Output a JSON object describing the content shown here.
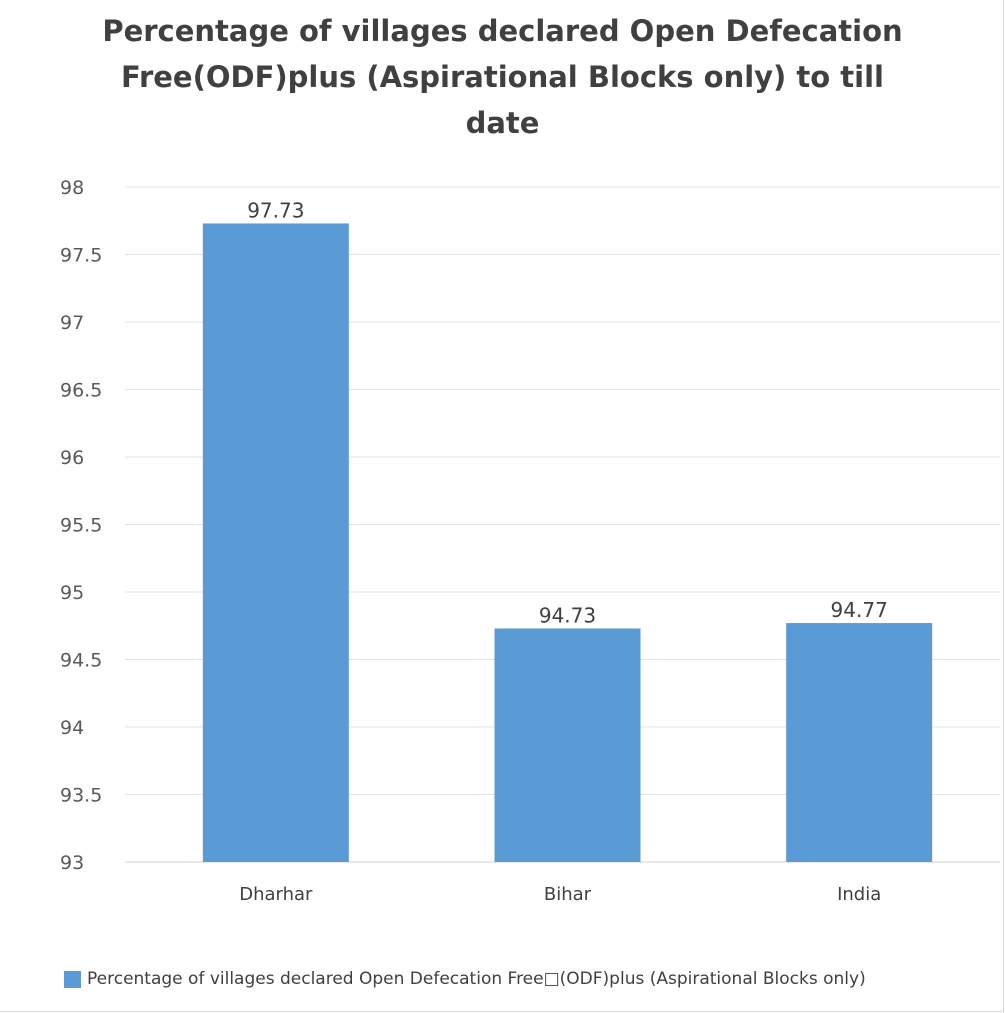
{
  "chart_data": {
    "type": "bar",
    "title_lines": [
      "Percentage of villages declared Open Defecation",
      "Free(ODF)plus (Aspirational Blocks only) to till",
      "date"
    ],
    "categories": [
      "Dharhar",
      "Bihar",
      "India"
    ],
    "series": [
      {
        "name": "Percentage of villages declared Open Defecation Free□(ODF)plus (Aspirational Blocks only)",
        "values": [
          97.73,
          94.73,
          94.77
        ],
        "data_labels": [
          "97.73",
          "94.73",
          "94.77"
        ],
        "color": "#5b9bd5"
      }
    ],
    "ylim": [
      93,
      98
    ],
    "yticks": [
      "93",
      "93.5",
      "94",
      "94.5",
      "95",
      "95.5",
      "96",
      "96.5",
      "97",
      "97.5",
      "98"
    ],
    "xlabel": "",
    "ylabel": "",
    "grid": true,
    "legend_position": "bottom"
  }
}
